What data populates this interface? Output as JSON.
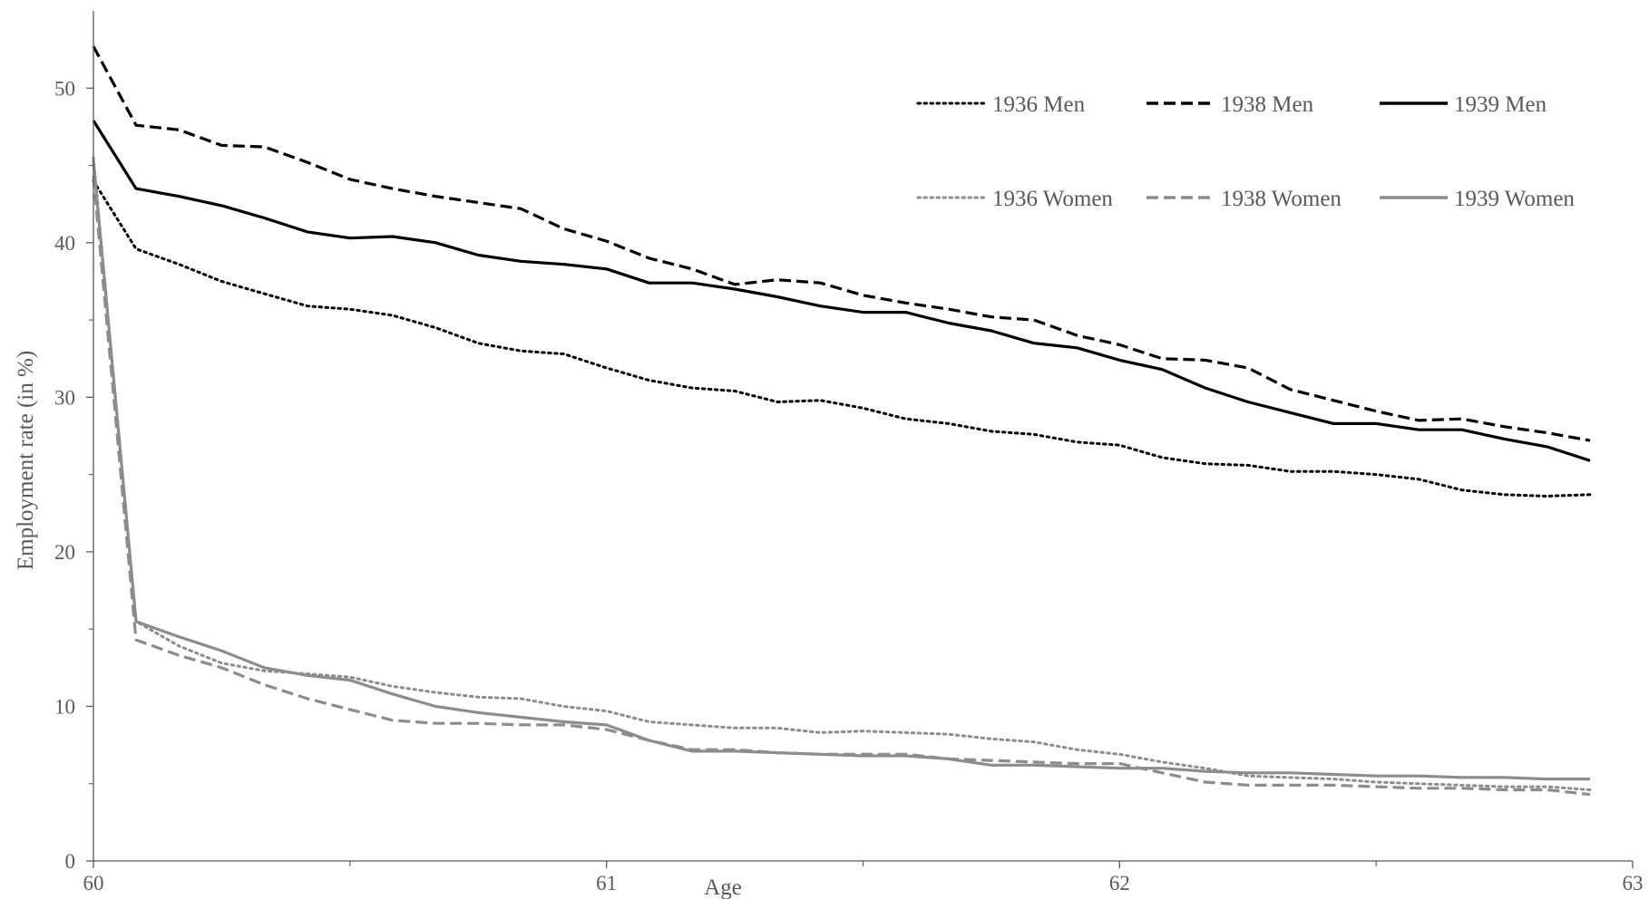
{
  "chart_data": {
    "type": "line",
    "title": "",
    "xlabel": "Age",
    "ylabel": "Employment rate (in %)",
    "xlim": [
      60,
      63
    ],
    "ylim": [
      0,
      55
    ],
    "x_ticks": [
      "60",
      "61",
      "62",
      "63"
    ],
    "y_ticks": [
      "0",
      "10",
      "20",
      "30",
      "40",
      "50"
    ],
    "grid": false,
    "legend_position": "top-right",
    "x": [
      60,
      60.083,
      60.167,
      60.25,
      60.333,
      60.417,
      60.5,
      60.583,
      60.667,
      60.75,
      60.833,
      60.917,
      61,
      61.083,
      61.167,
      61.25,
      61.333,
      61.417,
      61.5,
      61.583,
      61.667,
      61.75,
      61.833,
      61.917,
      62,
      62.083,
      62.167,
      62.25,
      62.333,
      62.417,
      62.5,
      62.583,
      62.667,
      62.75,
      62.833,
      62.917
    ],
    "series": [
      {
        "name": "1936 Men",
        "color": "#000000",
        "dash": "dotted",
        "values": [
          44,
          39.6,
          38.6,
          37.5,
          36.7,
          35.9,
          35.7,
          35.3,
          34.5,
          33.5,
          33.0,
          32.8,
          31.9,
          31.1,
          30.6,
          30.4,
          29.7,
          29.8,
          29.3,
          28.6,
          28.3,
          27.8,
          27.6,
          27.1,
          26.9,
          26.1,
          25.7,
          25.6,
          25.2,
          25.2,
          25.0,
          24.7,
          24.0,
          23.7,
          23.6,
          23.7
        ]
      },
      {
        "name": "1938 Men",
        "color": "#000000",
        "dash": "dashed",
        "values": [
          52.7,
          47.6,
          47.3,
          46.3,
          46.2,
          45.2,
          44.1,
          43.5,
          43.0,
          42.6,
          42.2,
          40.9,
          40.1,
          39.0,
          38.3,
          37.3,
          37.6,
          37.4,
          36.6,
          36.1,
          35.7,
          35.2,
          35.0,
          34.0,
          33.4,
          32.5,
          32.4,
          31.9,
          30.5,
          29.8,
          29.1,
          28.5,
          28.6,
          28.1,
          27.7,
          27.2
        ]
      },
      {
        "name": "1939 Men",
        "color": "#000000",
        "dash": "solid",
        "values": [
          47.9,
          43.5,
          43.0,
          42.4,
          41.6,
          40.7,
          40.3,
          40.4,
          40.0,
          39.2,
          38.8,
          38.6,
          38.3,
          37.4,
          37.4,
          37.0,
          36.5,
          35.9,
          35.5,
          35.5,
          34.8,
          34.3,
          33.5,
          33.2,
          32.4,
          31.8,
          30.6,
          29.7,
          29.0,
          28.3,
          28.3,
          27.9,
          27.9,
          27.3,
          26.8,
          25.9
        ]
      },
      {
        "name": "1936 Women",
        "color": "#8c8c8c",
        "dash": "dotted",
        "values": [
          45.5,
          15.5,
          13.9,
          12.8,
          12.3,
          12.1,
          11.9,
          11.3,
          10.9,
          10.6,
          10.5,
          10.0,
          9.7,
          9.0,
          8.8,
          8.6,
          8.6,
          8.3,
          8.4,
          8.3,
          8.2,
          7.9,
          7.7,
          7.2,
          6.9,
          6.4,
          6.0,
          5.5,
          5.4,
          5.3,
          5.1,
          5.0,
          4.9,
          4.8,
          4.8,
          4.6
        ]
      },
      {
        "name": "1938 Women",
        "color": "#8c8c8c",
        "dash": "dashed",
        "values": [
          44.3,
          14.3,
          13.3,
          12.5,
          11.4,
          10.5,
          9.8,
          9.1,
          8.9,
          8.9,
          8.8,
          8.8,
          8.5,
          7.8,
          7.2,
          7.2,
          7.0,
          6.9,
          6.9,
          6.9,
          6.6,
          6.5,
          6.4,
          6.3,
          6.3,
          5.7,
          5.1,
          4.9,
          4.9,
          4.9,
          4.8,
          4.7,
          4.7,
          4.6,
          4.6,
          4.3
        ]
      },
      {
        "name": "1939 Women",
        "color": "#8c8c8c",
        "dash": "solid",
        "values": [
          45.3,
          15.5,
          14.5,
          13.6,
          12.5,
          12.0,
          11.7,
          10.8,
          10.0,
          9.6,
          9.3,
          9.0,
          8.8,
          7.8,
          7.1,
          7.1,
          7.0,
          6.9,
          6.8,
          6.8,
          6.6,
          6.2,
          6.2,
          6.1,
          6.0,
          6.0,
          5.8,
          5.7,
          5.7,
          5.6,
          5.5,
          5.5,
          5.4,
          5.4,
          5.3,
          5.3
        ]
      }
    ]
  }
}
